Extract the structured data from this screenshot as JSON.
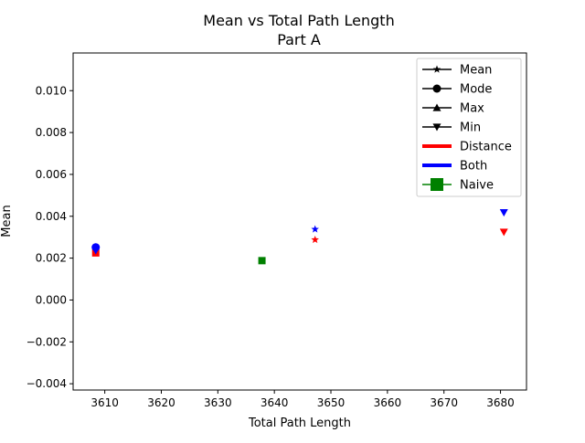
{
  "chart_data": {
    "type": "scatter",
    "title": "Mean vs Total Path Length",
    "subtitle": "Part A",
    "xlabel": "Total Path Length",
    "ylabel": "Mean",
    "xlim": [
      3604.4,
      3684.6
    ],
    "ylim": [
      -0.0043,
      0.0118
    ],
    "xticks": [
      3610,
      3620,
      3630,
      3640,
      3650,
      3660,
      3670,
      3680
    ],
    "yticks": [
      -0.004,
      -0.002,
      0.0,
      0.002,
      0.004,
      0.006,
      0.008,
      0.01
    ],
    "xtick_labels": [
      "3610",
      "3620",
      "3630",
      "3640",
      "3650",
      "3660",
      "3670",
      "3680"
    ],
    "ytick_labels": [
      "−0.004",
      "−0.002",
      "0.000",
      "0.002",
      "0.004",
      "0.006",
      "0.008",
      "0.010"
    ],
    "grid": false,
    "legend_position": "top-right",
    "legend": [
      {
        "label": "Mean",
        "kind": "marker",
        "marker": "star",
        "color": "#000000"
      },
      {
        "label": "Mode",
        "kind": "marker",
        "marker": "circle",
        "color": "#000000"
      },
      {
        "label": "Max",
        "kind": "marker",
        "marker": "triangle-up",
        "color": "#000000"
      },
      {
        "label": "Min",
        "kind": "marker",
        "marker": "triangle-down",
        "color": "#000000"
      },
      {
        "label": "Distance",
        "kind": "line",
        "color": "#ff0000"
      },
      {
        "label": "Both",
        "kind": "line",
        "color": "#0000ff"
      },
      {
        "label": "Naive",
        "kind": "square-line",
        "color": "#008000"
      }
    ],
    "points": [
      {
        "x": 3608.4,
        "y": 0.00225,
        "marker": "square",
        "color": "#ff0000"
      },
      {
        "x": 3608.4,
        "y": 0.00237,
        "marker": "triangle-down",
        "color": "#0000ff"
      },
      {
        "x": 3608.4,
        "y": 0.00252,
        "marker": "circle",
        "color": "#0000ff"
      },
      {
        "x": 3637.8,
        "y": 0.00188,
        "marker": "square",
        "color": "#008000"
      },
      {
        "x": 3647.2,
        "y": 0.00338,
        "marker": "star",
        "color": "#0000ff"
      },
      {
        "x": 3647.2,
        "y": 0.00288,
        "marker": "star",
        "color": "#ff0000"
      },
      {
        "x": 3680.6,
        "y": 0.00418,
        "marker": "triangle-down",
        "color": "#0000ff"
      },
      {
        "x": 3680.6,
        "y": 0.00325,
        "marker": "triangle-down",
        "color": "#ff0000"
      }
    ]
  }
}
